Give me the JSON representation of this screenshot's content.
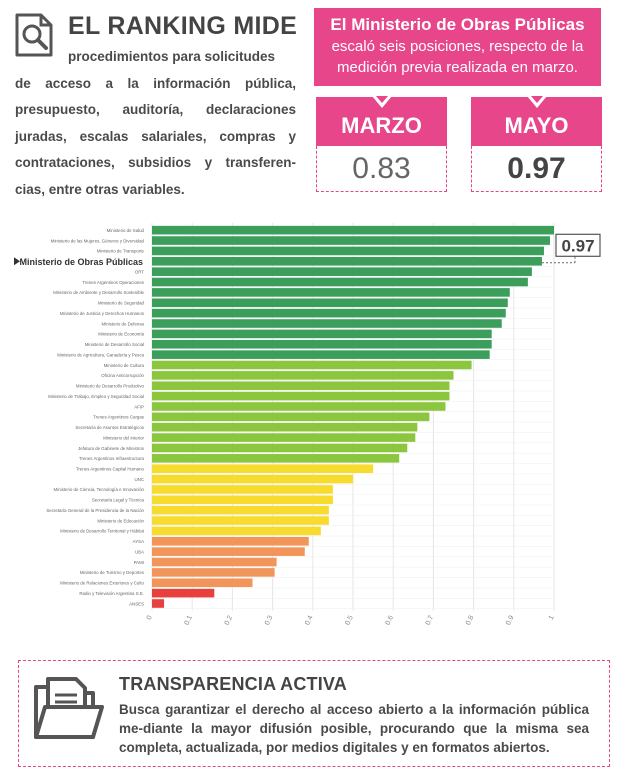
{
  "intro": {
    "title": "EL RANKING MIDE",
    "text_first": "procedimientos para solicitudes",
    "text_rest": "de acceso a la información pública, presupuesto, auditoría, declaraciones juradas, escalas salariales, compras y contrataciones, subsidios y transferen-cias, entre otras variables."
  },
  "highlight": {
    "headline": "El Ministerio de Obras Públicas",
    "sub": "escaló seis posiciones, respecto de la medición previa realizada en marzo.",
    "march_label": "MARZO",
    "march_value": "0.83",
    "may_label": "MAYO",
    "may_value": "0.97"
  },
  "chart_data": {
    "type": "bar",
    "orientation": "horizontal",
    "xlim": [
      0,
      1
    ],
    "xticks": [
      "0",
      "0.1",
      "0.2",
      "0.3",
      "0.4",
      "0.5",
      "0.6",
      "0.7",
      "0.8",
      "0.9",
      "1"
    ],
    "grid": true,
    "highlighted_category": "Ministerio de Obras Públicas",
    "highlight_value_label": "0.97",
    "colors": {
      "dark_green": "#3b9e5b",
      "light_green": "#8cc63e",
      "yellow": "#f7dc2f",
      "orange": "#f2955a",
      "red": "#e8403d",
      "grid": "#e6e6e6",
      "pink": "#e8468b"
    },
    "bars": [
      {
        "label": "Ministerio de Salud",
        "value": 1.0,
        "color": "dark_green"
      },
      {
        "label": "Ministerio de las Mujeres, Géneros y Diversidad",
        "value": 0.99,
        "color": "dark_green"
      },
      {
        "label": "Ministerio de Transporte",
        "value": 0.975,
        "color": "dark_green"
      },
      {
        "label": "Ministerio de Obras Públicas",
        "value": 0.97,
        "color": "dark_green"
      },
      {
        "label": "ORT",
        "value": 0.945,
        "color": "dark_green"
      },
      {
        "label": "Trenes Argentinos Operaciones",
        "value": 0.935,
        "color": "dark_green"
      },
      {
        "label": "Ministerio de Ambiente y Desarrollo Sostenible",
        "value": 0.89,
        "color": "dark_green"
      },
      {
        "label": "Ministerio de Seguridad",
        "value": 0.885,
        "color": "dark_green"
      },
      {
        "label": "Ministerio de Justicia y Derechos Humanos",
        "value": 0.88,
        "color": "dark_green"
      },
      {
        "label": "Ministerio de Defensa",
        "value": 0.87,
        "color": "dark_green"
      },
      {
        "label": "Ministerio de Economía",
        "value": 0.845,
        "color": "dark_green"
      },
      {
        "label": "Ministerio de Desarrollo Social",
        "value": 0.845,
        "color": "dark_green"
      },
      {
        "label": "Ministerio de Agricultura, Ganadería y Pesca",
        "value": 0.84,
        "color": "dark_green"
      },
      {
        "label": "Ministerio de Cultura",
        "value": 0.795,
        "color": "light_green"
      },
      {
        "label": "Oficina Anticorrupción",
        "value": 0.75,
        "color": "light_green"
      },
      {
        "label": "Ministerio de Desarrollo Productivo",
        "value": 0.74,
        "color": "light_green"
      },
      {
        "label": "Ministerio de Trabajo, Empleo y Seguridad Social",
        "value": 0.74,
        "color": "light_green"
      },
      {
        "label": "AFIP",
        "value": 0.73,
        "color": "light_green"
      },
      {
        "label": "Trenes Argentinos Cargas",
        "value": 0.69,
        "color": "light_green"
      },
      {
        "label": "Secretaría de Asuntos Estratégicos",
        "value": 0.66,
        "color": "light_green"
      },
      {
        "label": "Ministerio del Interior",
        "value": 0.655,
        "color": "light_green"
      },
      {
        "label": "Jefatura de Gabinete de Ministros",
        "value": 0.635,
        "color": "light_green"
      },
      {
        "label": "Trenes Argentinos Infraestructura",
        "value": 0.615,
        "color": "light_green"
      },
      {
        "label": "Trenes Argentinos Capital Humano",
        "value": 0.55,
        "color": "yellow"
      },
      {
        "label": "UNC",
        "value": 0.5,
        "color": "yellow"
      },
      {
        "label": "Ministerio de Ciencia, Tecnología e Innovación",
        "value": 0.45,
        "color": "yellow"
      },
      {
        "label": "Secretaría Legal y Técnica",
        "value": 0.45,
        "color": "yellow"
      },
      {
        "label": "Secretaría General de la Presidencia de la Nación",
        "value": 0.44,
        "color": "yellow"
      },
      {
        "label": "Ministerio de Educación",
        "value": 0.44,
        "color": "yellow"
      },
      {
        "label": "Ministerio de Desarrollo Territorial y Hábitat",
        "value": 0.42,
        "color": "yellow"
      },
      {
        "label": "AYSA",
        "value": 0.39,
        "color": "orange"
      },
      {
        "label": "UBA",
        "value": 0.38,
        "color": "orange"
      },
      {
        "label": "PAMI",
        "value": 0.31,
        "color": "orange"
      },
      {
        "label": "Ministerio de Turismo y Deportes",
        "value": 0.305,
        "color": "orange"
      },
      {
        "label": "Ministerio de Relaciones Exteriores y Culto",
        "value": 0.25,
        "color": "orange"
      },
      {
        "label": "Radio y Televisión Argentina S.E.",
        "value": 0.155,
        "color": "red"
      },
      {
        "label": "ANSES",
        "value": 0.03,
        "color": "red"
      }
    ]
  },
  "bottom": {
    "title": "TRANSPARENCIA ACTIVA",
    "text": "Busca garantizar el derecho al acceso abierto a la información pública me-diante la mayor difusión posible, procurando que la misma sea completa, actualizada, por medios digitales y en formatos abiertos."
  }
}
